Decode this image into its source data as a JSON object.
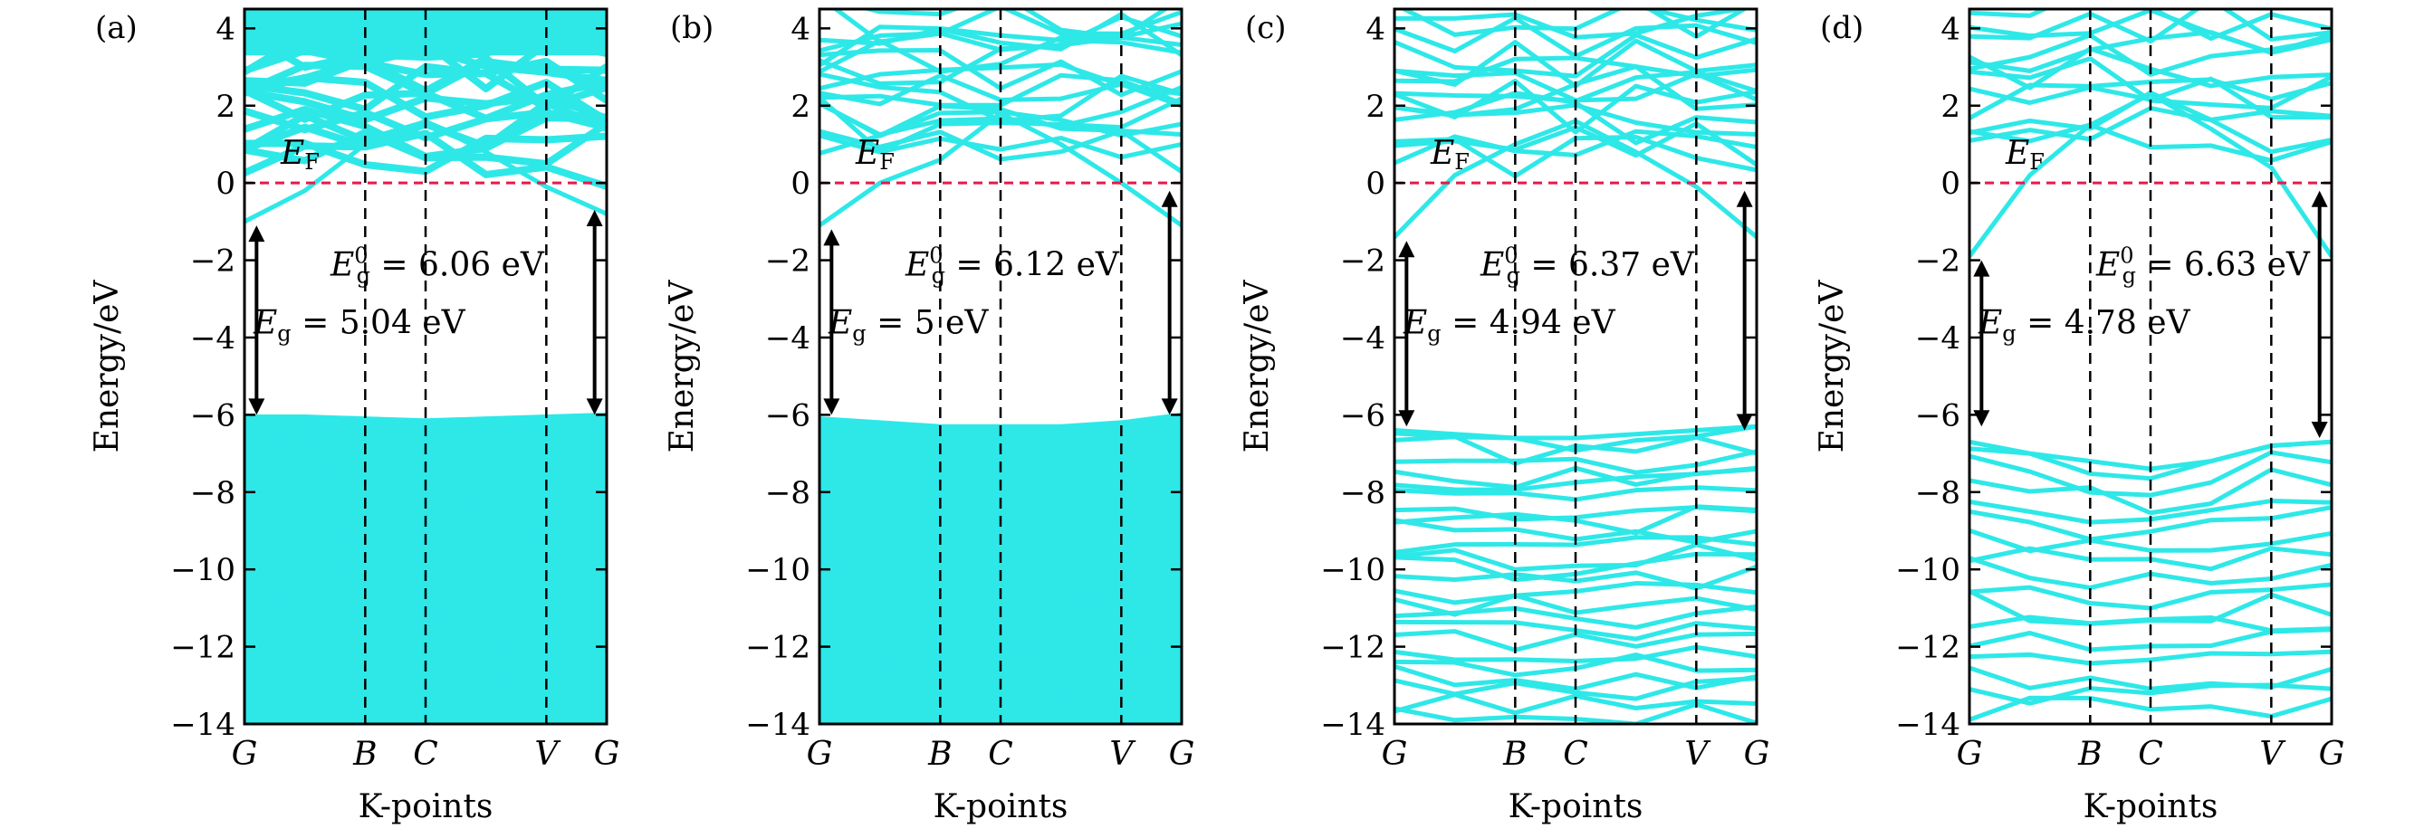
{
  "colors": {
    "bands": "#2ee8e8",
    "fermi_line": "#e8194a",
    "axes": "#000000",
    "arrows": "#000000"
  },
  "chart_data": [
    {
      "type": "line",
      "panel_label": "(a)",
      "xlabel": "K-points",
      "ylabel": "Energy/eV",
      "ylim": [
        -14,
        4.5
      ],
      "yticks": [
        4,
        2,
        0,
        -2,
        -4,
        -6,
        -8,
        -10,
        -12,
        -14
      ],
      "ytick_labels": [
        "4",
        "2",
        "0",
        "−2",
        "−4",
        "−6",
        "−8",
        "−10",
        "−12",
        "−14"
      ],
      "k_points": [
        "G",
        "B",
        "C",
        "V",
        "G"
      ],
      "k_positions": [
        0,
        1,
        1.5,
        2.5,
        3
      ],
      "fermi_level": 0,
      "fermi_label": "E_F",
      "band_gap": 5.04,
      "direct_gap": 6.06,
      "gap_label": "E_g = 5.04 eV",
      "direct_gap_label": "E_g^0 = 6.06 eV",
      "crossing_band": {
        "x": [
          0,
          0.5,
          1,
          1.5,
          2,
          2.5,
          3
        ],
        "y": [
          -1.0,
          -0.2,
          1.0,
          1.6,
          0.8,
          -0.1,
          -0.8
        ]
      },
      "upper_band_range": [
        0.5,
        4.5
      ],
      "valence_top": [
        -6.05,
        -6.05,
        -6.1,
        -6.15,
        -6.1,
        -6.05,
        -6.0
      ],
      "valence_band_count": 36,
      "valence_bottom": -14,
      "arrow_indirect": {
        "x": 0.1,
        "y": [
          -1.1,
          -6.0
        ]
      },
      "arrow_direct": {
        "x": 2.9,
        "y": [
          -0.7,
          -6.0
        ]
      }
    },
    {
      "type": "line",
      "panel_label": "(b)",
      "xlabel": "K-points",
      "ylabel": "Energy/eV",
      "ylim": [
        -14,
        4.5
      ],
      "yticks": [
        4,
        2,
        0,
        -2,
        -4,
        -6,
        -8,
        -10,
        -12,
        -14
      ],
      "ytick_labels": [
        "4",
        "2",
        "0",
        "−2",
        "−4",
        "−6",
        "−8",
        "−10",
        "−12",
        "−14"
      ],
      "k_points": [
        "G",
        "B",
        "C",
        "V",
        "G"
      ],
      "k_positions": [
        0,
        1,
        1.5,
        2.5,
        3
      ],
      "fermi_level": 0,
      "fermi_label": "E_F",
      "band_gap": 5,
      "direct_gap": 6.12,
      "gap_label": "E_g = 5 eV",
      "direct_gap_label": "E_g^0 = 6.12 eV",
      "crossing_band": {
        "x": [
          0,
          0.5,
          1,
          1.5,
          2,
          2.5,
          3
        ],
        "y": [
          -1.1,
          0.0,
          0.6,
          1.8,
          1.0,
          0.0,
          -1.1
        ]
      },
      "upper_band_range": [
        0.8,
        4.5
      ],
      "valence_top": [
        -6.1,
        -6.2,
        -6.3,
        -6.3,
        -6.3,
        -6.2,
        -6.0
      ],
      "valence_band_count": 30,
      "valence_bottom": -14,
      "arrow_indirect": {
        "x": 0.1,
        "y": [
          -1.2,
          -6.0
        ]
      },
      "arrow_direct": {
        "x": 2.9,
        "y": [
          -0.2,
          -6.0
        ]
      }
    },
    {
      "type": "line",
      "panel_label": "(c)",
      "xlabel": "K-points",
      "ylabel": "Energy/eV",
      "ylim": [
        -14,
        4.5
      ],
      "yticks": [
        4,
        2,
        0,
        -2,
        -4,
        -6,
        -8,
        -10,
        -12,
        -14
      ],
      "ytick_labels": [
        "4",
        "2",
        "0",
        "−2",
        "−4",
        "−6",
        "−8",
        "−10",
        "−12",
        "−14"
      ],
      "k_points": [
        "G",
        "B",
        "C",
        "V",
        "G"
      ],
      "k_positions": [
        0,
        1,
        1.5,
        2.5,
        3
      ],
      "fermi_level": 0,
      "fermi_label": "E_F",
      "band_gap": 4.94,
      "direct_gap": 6.37,
      "gap_label": "E_g = 4.94 eV",
      "direct_gap_label": "E_g^0 = 6.37 eV",
      "crossing_band": {
        "x": [
          0,
          0.5,
          1,
          1.5,
          2,
          2.5,
          3
        ],
        "y": [
          -1.4,
          0.2,
          1.0,
          1.6,
          0.8,
          -0.1,
          -1.4
        ]
      },
      "upper_band_range": [
        0.6,
        4.5
      ],
      "valence_top": [
        -6.4,
        -6.5,
        -6.6,
        -6.6,
        -6.5,
        -6.4,
        -6.3
      ],
      "valence_band_count": 24,
      "valence_bottom": -14,
      "arrow_indirect": {
        "x": 0.1,
        "y": [
          -1.5,
          -6.3
        ]
      },
      "arrow_direct": {
        "x": 2.9,
        "y": [
          -0.2,
          -6.4
        ]
      }
    },
    {
      "type": "line",
      "panel_label": "(d)",
      "xlabel": "K-points",
      "ylabel": "Energy/eV",
      "ylim": [
        -14,
        4.5
      ],
      "yticks": [
        4,
        2,
        0,
        -2,
        -4,
        -6,
        -8,
        -10,
        -12,
        -14
      ],
      "ytick_labels": [
        "4",
        "2",
        "0",
        "−2",
        "−4",
        "−6",
        "−8",
        "−10",
        "−12",
        "−14"
      ],
      "k_points": [
        "G",
        "B",
        "C",
        "V",
        "G"
      ],
      "k_positions": [
        0,
        1,
        1.5,
        2.5,
        3
      ],
      "fermi_level": 0,
      "fermi_label": "E_F",
      "band_gap": 4.78,
      "direct_gap": 6.63,
      "gap_label": "E_g = 4.78 eV",
      "direct_gap_label": "E_g^0 = 6.63 eV",
      "crossing_band": {
        "x": [
          0,
          0.5,
          1,
          1.5,
          2,
          2.5,
          3
        ],
        "y": [
          -1.9,
          0.2,
          1.5,
          2.3,
          1.4,
          0.4,
          -1.9
        ]
      },
      "upper_band_range": [
        1.0,
        4.5
      ],
      "valence_top": [
        -6.7,
        -7.0,
        -7.2,
        -7.4,
        -7.2,
        -6.8,
        -6.7
      ],
      "valence_band_count": 16,
      "valence_bottom": -14,
      "arrow_indirect": {
        "x": 0.1,
        "y": [
          -2.0,
          -6.3
        ]
      },
      "arrow_direct": {
        "x": 2.9,
        "y": [
          -0.2,
          -6.6
        ]
      }
    }
  ]
}
